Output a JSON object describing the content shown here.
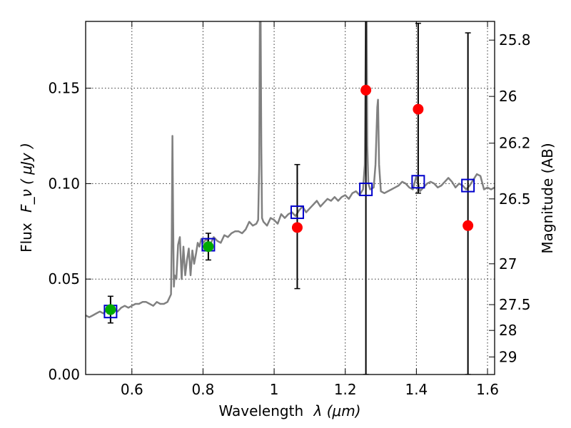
{
  "chart_data": {
    "type": "scatter",
    "title": "",
    "xlabel_text": "Wavelength",
    "xlabel_math": "λ (μm)",
    "ylabel_text": "Flux",
    "ylabel_math": "F_ν ( μJy )",
    "y2label": "Magnitude (AB)",
    "xlim": [
      0.47,
      1.62
    ],
    "ylim": [
      0.0,
      0.185
    ],
    "grid": true,
    "xticks": [
      0.6,
      0.8,
      1.0,
      1.2,
      1.4,
      1.6
    ],
    "xtick_labels": [
      "0.6",
      "0.8",
      "1",
      "1.2",
      "1.4",
      "1.6"
    ],
    "yticks": [
      0.0,
      0.05,
      0.1,
      0.15
    ],
    "ytick_labels": [
      "0.00",
      "0.05",
      "0.10",
      "0.15"
    ],
    "y2ticks": [
      {
        "label": "25.8",
        "flux": 0.1752
      },
      {
        "label": "26",
        "flux": 0.1457
      },
      {
        "label": "26.2",
        "flux": 0.1212
      },
      {
        "label": "26.5",
        "flux": 0.092
      },
      {
        "label": "27",
        "flux": 0.058
      },
      {
        "label": "27.5",
        "flux": 0.0366
      },
      {
        "label": "28",
        "flux": 0.0231
      },
      {
        "label": "29",
        "flux": 0.0092
      }
    ],
    "template_spectrum": {
      "name": "model template",
      "color": "#808080",
      "x": [
        0.47,
        0.48,
        0.49,
        0.5,
        0.51,
        0.52,
        0.53,
        0.54,
        0.55,
        0.56,
        0.57,
        0.58,
        0.59,
        0.6,
        0.61,
        0.62,
        0.63,
        0.64,
        0.65,
        0.66,
        0.67,
        0.68,
        0.69,
        0.7,
        0.705,
        0.71,
        0.712,
        0.714,
        0.716,
        0.718,
        0.72,
        0.725,
        0.73,
        0.735,
        0.74,
        0.745,
        0.75,
        0.755,
        0.76,
        0.765,
        0.77,
        0.775,
        0.78,
        0.785,
        0.79,
        0.795,
        0.8,
        0.81,
        0.82,
        0.83,
        0.84,
        0.85,
        0.86,
        0.87,
        0.88,
        0.89,
        0.9,
        0.91,
        0.92,
        0.93,
        0.94,
        0.95,
        0.955,
        0.958,
        0.96,
        0.962,
        0.964,
        0.966,
        0.97,
        0.98,
        0.99,
        1.0,
        1.01,
        1.02,
        1.03,
        1.04,
        1.05,
        1.06,
        1.07,
        1.08,
        1.09,
        1.1,
        1.11,
        1.12,
        1.13,
        1.14,
        1.15,
        1.16,
        1.17,
        1.18,
        1.19,
        1.2,
        1.21,
        1.22,
        1.23,
        1.24,
        1.25,
        1.255,
        1.258,
        1.26,
        1.262,
        1.265,
        1.27,
        1.28,
        1.285,
        1.29,
        1.292,
        1.295,
        1.3,
        1.31,
        1.32,
        1.33,
        1.34,
        1.35,
        1.36,
        1.37,
        1.38,
        1.39,
        1.4,
        1.41,
        1.42,
        1.43,
        1.44,
        1.45,
        1.46,
        1.47,
        1.48,
        1.49,
        1.5,
        1.51,
        1.52,
        1.53,
        1.54,
        1.55,
        1.56,
        1.57,
        1.58,
        1.59,
        1.6,
        1.61,
        1.62
      ],
      "y": [
        0.031,
        0.03,
        0.031,
        0.032,
        0.033,
        0.032,
        0.034,
        0.034,
        0.034,
        0.033,
        0.035,
        0.036,
        0.035,
        0.036,
        0.037,
        0.037,
        0.038,
        0.038,
        0.037,
        0.036,
        0.038,
        0.037,
        0.037,
        0.038,
        0.04,
        0.042,
        0.07,
        0.125,
        0.08,
        0.046,
        0.052,
        0.05,
        0.068,
        0.072,
        0.05,
        0.067,
        0.052,
        0.06,
        0.066,
        0.052,
        0.065,
        0.058,
        0.063,
        0.069,
        0.067,
        0.071,
        0.069,
        0.071,
        0.068,
        0.072,
        0.07,
        0.069,
        0.073,
        0.072,
        0.074,
        0.075,
        0.075,
        0.074,
        0.076,
        0.08,
        0.078,
        0.079,
        0.081,
        0.11,
        0.19,
        0.19,
        0.12,
        0.082,
        0.08,
        0.078,
        0.082,
        0.081,
        0.079,
        0.084,
        0.082,
        0.084,
        0.085,
        0.083,
        0.086,
        0.088,
        0.085,
        0.087,
        0.089,
        0.091,
        0.088,
        0.09,
        0.092,
        0.091,
        0.093,
        0.091,
        0.093,
        0.094,
        0.092,
        0.095,
        0.096,
        0.094,
        0.097,
        0.11,
        0.19,
        0.19,
        0.12,
        0.1,
        0.097,
        0.098,
        0.11,
        0.14,
        0.144,
        0.11,
        0.096,
        0.095,
        0.096,
        0.097,
        0.098,
        0.099,
        0.101,
        0.1,
        0.098,
        0.097,
        0.104,
        0.096,
        0.098,
        0.1,
        0.101,
        0.1,
        0.098,
        0.099,
        0.101,
        0.103,
        0.101,
        0.098,
        0.1,
        0.099,
        0.097,
        0.099,
        0.102,
        0.105,
        0.104,
        0.097,
        0.098,
        0.097,
        0.098
      ]
    },
    "model_photometry": {
      "name": "model photometry",
      "marker": "open-square",
      "color": "#0000cc",
      "x": [
        0.54,
        0.815,
        1.065,
        1.258,
        1.405,
        1.545
      ],
      "y": [
        0.033,
        0.068,
        0.085,
        0.097,
        0.101,
        0.099
      ]
    },
    "observed_photometry": {
      "name": "observed photometry",
      "marker": "filled-circle",
      "x": [
        0.54,
        0.815,
        1.065,
        1.258,
        1.405,
        1.545
      ],
      "y": [
        0.034,
        0.067,
        0.077,
        0.149,
        0.139,
        0.078
      ],
      "yerr_low": [
        0.027,
        0.06,
        0.045,
        0.0,
        0.095,
        0.0
      ],
      "yerr_high": [
        0.041,
        0.074,
        0.11,
        0.2,
        0.184,
        0.179
      ],
      "colors": [
        "#00aa00",
        "#00aa00",
        "#ff0000",
        "#ff0000",
        "#ff0000",
        "#ff0000"
      ]
    }
  }
}
